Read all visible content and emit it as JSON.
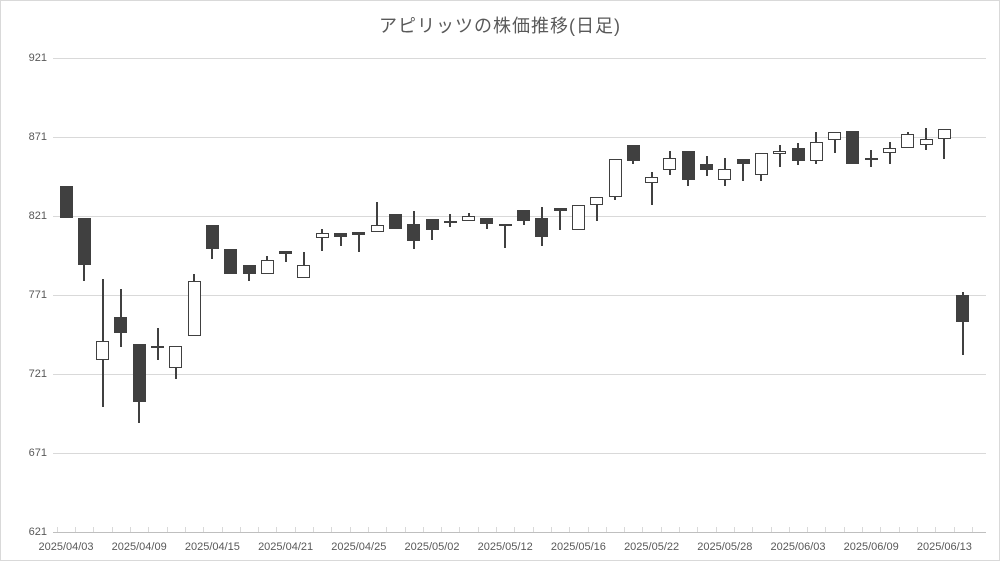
{
  "title": "アピリッツの株価推移(日足)",
  "chart_data": {
    "type": "candlestick",
    "title": "アピリッツの株価推移(日足)",
    "y_axis": {
      "min": 621,
      "max": 921,
      "step": 50,
      "tick_labels": [
        "921",
        "871",
        "821",
        "771",
        "721",
        "671",
        "621"
      ]
    },
    "x_axis": {
      "tick_labels": [
        "2025/04/03",
        "2025/04/09",
        "2025/04/15",
        "2025/04/21",
        "2025/04/25",
        "2025/05/02",
        "2025/05/12",
        "2025/05/16",
        "2025/05/22",
        "2025/05/28",
        "2025/06/03",
        "2025/06/09",
        "2025/06/13"
      ],
      "label_start_index": 0,
      "label_step": 4
    },
    "grid": true,
    "legend": "none",
    "candle_count": 50,
    "candles_ohlc": [
      [
        840,
        840,
        820,
        820
      ],
      [
        820,
        820,
        780,
        790
      ],
      [
        730,
        781,
        700,
        742
      ],
      [
        757,
        775,
        738,
        747
      ],
      [
        740,
        740,
        690,
        703
      ],
      [
        739,
        750,
        730,
        738
      ],
      [
        725,
        739,
        718,
        739
      ],
      [
        745,
        784,
        745,
        780
      ],
      [
        815,
        815,
        794,
        800
      ],
      [
        800,
        800,
        784,
        784
      ],
      [
        790,
        790,
        780,
        784
      ],
      [
        784,
        796,
        784,
        793
      ],
      [
        799,
        799,
        792,
        797
      ],
      [
        782,
        798,
        782,
        790
      ],
      [
        807,
        813,
        799,
        810
      ],
      [
        810,
        810,
        802,
        808
      ],
      [
        811,
        811,
        798,
        809
      ],
      [
        811,
        830,
        811,
        815
      ],
      [
        822,
        822,
        813,
        813
      ],
      [
        816,
        824,
        800,
        805
      ],
      [
        819,
        819,
        806,
        812
      ],
      [
        818,
        822,
        814,
        817
      ],
      [
        818,
        823,
        818,
        821
      ],
      [
        820,
        820,
        813,
        816
      ],
      [
        816,
        816,
        801,
        815
      ],
      [
        825,
        825,
        815,
        818
      ],
      [
        820,
        827,
        802,
        808
      ],
      [
        826,
        826,
        812,
        824
      ],
      [
        812,
        828,
        812,
        828
      ],
      [
        828,
        833,
        818,
        833
      ],
      [
        833,
        857,
        831,
        857
      ],
      [
        866,
        866,
        854,
        856
      ],
      [
        842,
        849,
        828,
        846
      ],
      [
        850,
        862,
        847,
        858
      ],
      [
        862,
        862,
        840,
        844
      ],
      [
        854,
        859,
        846,
        850
      ],
      [
        844,
        858,
        840,
        851
      ],
      [
        857,
        857,
        843,
        854
      ],
      [
        847,
        861,
        843,
        861
      ],
      [
        861,
        866,
        852,
        862
      ],
      [
        864,
        867,
        853,
        856
      ],
      [
        856,
        874,
        854,
        868
      ],
      [
        869,
        874,
        861,
        874
      ],
      [
        875,
        875,
        854,
        854
      ],
      [
        858,
        863,
        852,
        857
      ],
      [
        861,
        868,
        854,
        864
      ],
      [
        864,
        874,
        864,
        873
      ],
      [
        866,
        877,
        863,
        870
      ],
      [
        870,
        876,
        857,
        876
      ],
      [
        771,
        773,
        733,
        754
      ]
    ],
    "colors": {
      "up_fill": "#FFFFFF",
      "down_fill": "#404040",
      "outline": "#404040",
      "wick": "#404040",
      "gridline": "#D9D9D9",
      "axis_line": "#BFBFBF",
      "text": "#595959",
      "background": "#FFFFFF"
    }
  }
}
